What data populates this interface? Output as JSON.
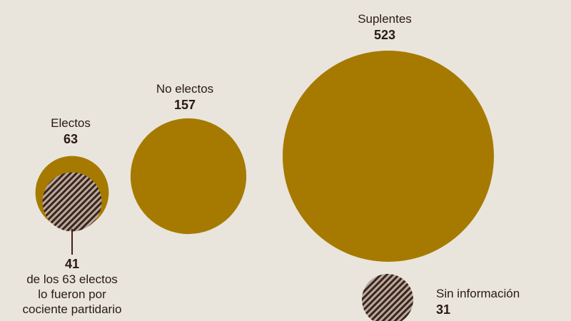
{
  "colors": {
    "background": "#e9e5dc",
    "bubble": "#a67a00",
    "hatch": "#3a2418",
    "hatch_bg": "#b7a8a0",
    "leader": "#4a1f1a"
  },
  "chart_data": {
    "type": "bubble",
    "title": "",
    "bubbles": [
      {
        "label": "Electos",
        "value": 63
      },
      {
        "label": "No electos",
        "value": 157
      },
      {
        "label": "Suplentes",
        "value": 523
      },
      {
        "label": "Sin información",
        "value": 31
      }
    ],
    "subset": {
      "parent": "Electos",
      "value": 41,
      "note_lines": [
        "de los 63 electos",
        "lo fueron por",
        "cociente partidario"
      ]
    }
  },
  "labels": {
    "electos": {
      "name": "Electos",
      "value": "63"
    },
    "no_electos": {
      "name": "No electos",
      "value": "157"
    },
    "suplentes": {
      "name": "Suplentes",
      "value": "523"
    },
    "sin_info": {
      "name": "Sin información",
      "value": "31"
    },
    "cociente": {
      "value": "41",
      "line1": "de los 63 electos",
      "line2": "lo fueron por",
      "line3": "cociente partidario"
    }
  }
}
